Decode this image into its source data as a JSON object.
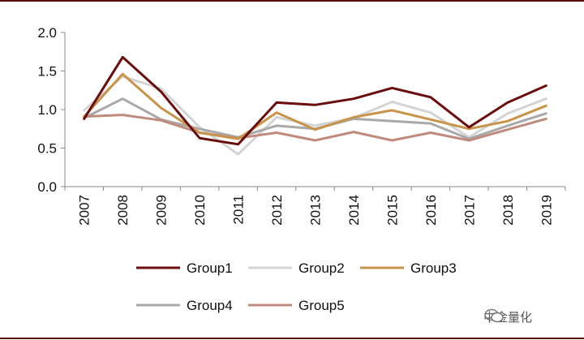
{
  "chart_data": {
    "type": "line",
    "title": "",
    "xlabel": "",
    "ylabel": "",
    "x": [
      "2007",
      "2008",
      "2009",
      "2010",
      "2011",
      "2012",
      "2013",
      "2014",
      "2015",
      "2016",
      "2017",
      "2018",
      "2019"
    ],
    "ylim": [
      0,
      2.0
    ],
    "yticks": [
      "0.0",
      "0.5",
      "1.0",
      "1.5",
      "2.0"
    ],
    "grid": false,
    "legend_position": "bottom",
    "series": [
      {
        "name": "Group1",
        "color": "#6b0d0d",
        "values": [
          0.88,
          1.68,
          1.23,
          0.63,
          0.55,
          1.09,
          1.06,
          1.14,
          1.28,
          1.16,
          0.77,
          1.09,
          1.31
        ]
      },
      {
        "name": "Group2",
        "color": "#d4d4d4",
        "values": [
          0.99,
          1.43,
          1.27,
          0.77,
          0.42,
          0.9,
          0.79,
          0.89,
          1.1,
          0.96,
          0.64,
          0.95,
          1.14
        ]
      },
      {
        "name": "Group3",
        "color": "#c8944a",
        "values": [
          0.91,
          1.46,
          1.02,
          0.7,
          0.62,
          0.96,
          0.74,
          0.9,
          0.99,
          0.87,
          0.75,
          0.85,
          1.05
        ]
      },
      {
        "name": "Group4",
        "color": "#a9a9a9",
        "values": [
          0.89,
          1.14,
          0.87,
          0.75,
          0.64,
          0.79,
          0.75,
          0.88,
          0.85,
          0.82,
          0.62,
          0.79,
          0.95
        ]
      },
      {
        "name": "Group5",
        "color": "#c08a7c",
        "values": [
          0.91,
          0.93,
          0.86,
          0.7,
          0.63,
          0.7,
          0.6,
          0.71,
          0.6,
          0.7,
          0.6,
          0.74,
          0.88
        ]
      }
    ]
  },
  "watermark": {
    "text": "中金量化",
    "icon": "wechat-icon"
  }
}
